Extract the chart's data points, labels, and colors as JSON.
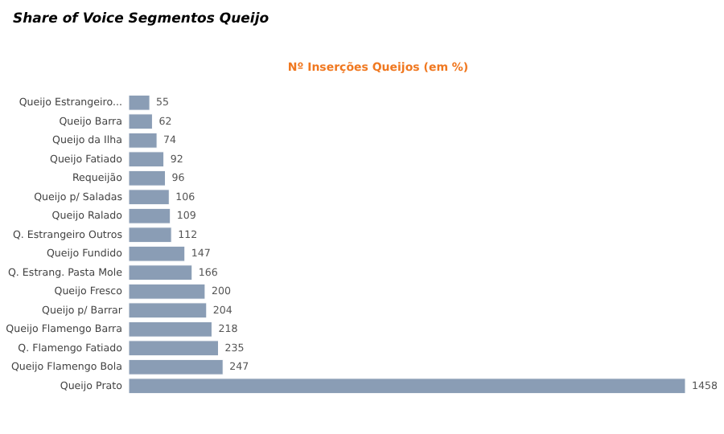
{
  "chart_data": {
    "type": "bar",
    "orientation": "horizontal",
    "title": "Share of Voice Segmentos Queijo",
    "subtitle": "Nº Inserções Queijos (em %)",
    "categories": [
      "Queijo Estrangeiro...",
      "Queijo Barra",
      "Queijo da Ilha",
      "Queijo Fatiado",
      "Requeijão",
      "Queijo p/ Saladas",
      "Queijo Ralado",
      "Q. Estrangeiro Outros",
      "Queijo Fundido",
      "Q. Estrang. Pasta Mole",
      "Queijo Fresco",
      "Queijo p/ Barrar",
      "Queijo Flamengo Barra",
      "Q. Flamengo Fatiado",
      "Queijo Flamengo Bola",
      "Queijo Prato"
    ],
    "values": [
      55,
      62,
      74,
      92,
      96,
      106,
      109,
      112,
      147,
      166,
      200,
      204,
      218,
      235,
      247,
      1458
    ],
    "color": "#8a9db5",
    "data_labels": true
  }
}
